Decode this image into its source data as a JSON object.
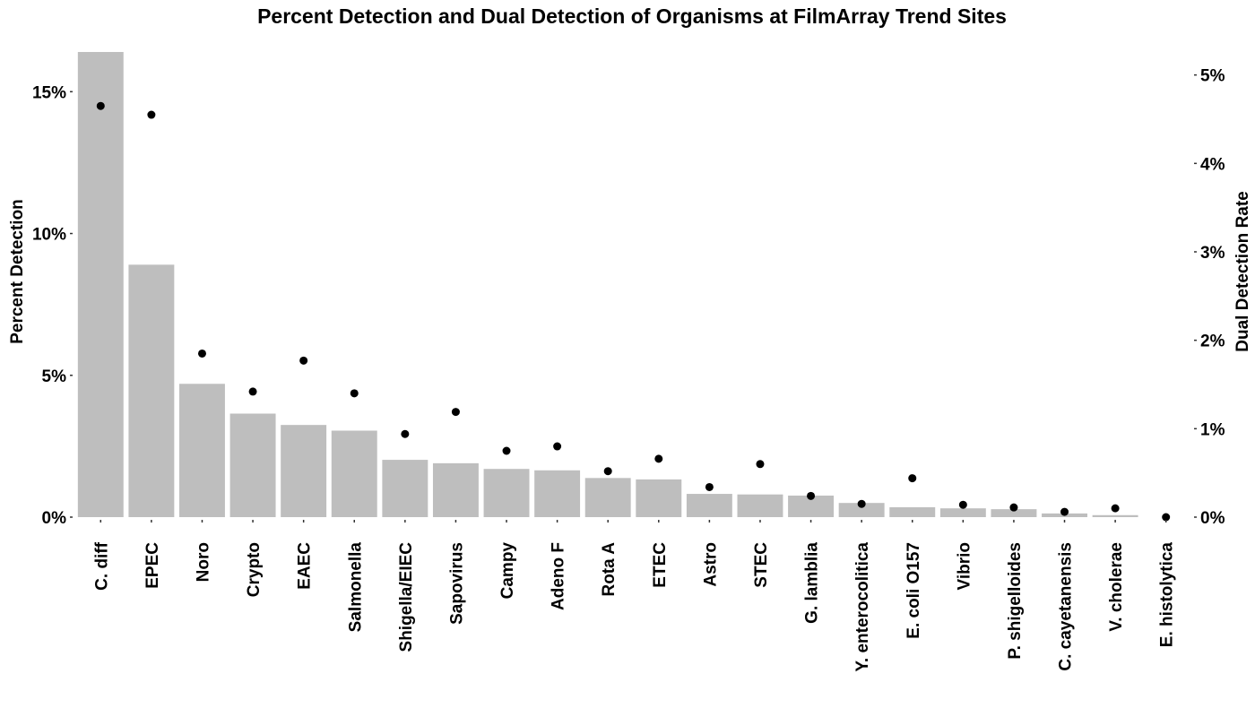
{
  "chart_data": {
    "type": "bar",
    "title": "Percent Detection and Dual Detection of Organisms at FilmArray Trend Sites",
    "xlabel": "",
    "ylabel": "Percent Detection",
    "y2label": "Dual Detection Rate",
    "categories": [
      "C. diff",
      "EPEC",
      "Noro",
      "Crypto",
      "EAEC",
      "Salmonella",
      "Shigella/EIEC",
      "Sapovirus",
      "Campy",
      "Adeno F",
      "Rota A",
      "ETEC",
      "Astro",
      "STEC",
      "G. lamblia",
      "Y. enterocolitica",
      "E. coli O157",
      "Vibrio",
      "P. shigelloides",
      "C. cayetanensis",
      "V. cholerae",
      "E. histolytica"
    ],
    "series": [
      {
        "name": "Percent Detection",
        "mark": "bar",
        "axis": "left",
        "color": "#bebebe",
        "values": [
          16.4,
          8.9,
          4.7,
          3.65,
          3.25,
          3.05,
          2.02,
          1.9,
          1.7,
          1.65,
          1.38,
          1.33,
          0.82,
          0.8,
          0.76,
          0.5,
          0.35,
          0.31,
          0.28,
          0.13,
          0.07,
          0.0
        ]
      },
      {
        "name": "Dual Detection Rate",
        "mark": "point",
        "axis": "right",
        "color": "#000000",
        "values": [
          4.65,
          4.55,
          1.85,
          1.42,
          1.77,
          1.4,
          0.94,
          1.19,
          0.75,
          0.8,
          0.52,
          0.66,
          0.34,
          0.6,
          0.24,
          0.15,
          0.44,
          0.14,
          0.11,
          0.06,
          0.1,
          0.0
        ]
      }
    ],
    "ylim": [
      0,
      16.4
    ],
    "y2lim": [
      0,
      5.26
    ],
    "yticks": [
      "0%",
      "5%",
      "10%",
      "15%"
    ],
    "yticks_values": [
      0,
      5,
      10,
      15
    ],
    "y2ticks": [
      "0%",
      "1%",
      "2%",
      "3%",
      "4%",
      "5%"
    ],
    "y2ticks_values": [
      0,
      1,
      2,
      3,
      4,
      5
    ],
    "grid": false,
    "legend": "none"
  }
}
